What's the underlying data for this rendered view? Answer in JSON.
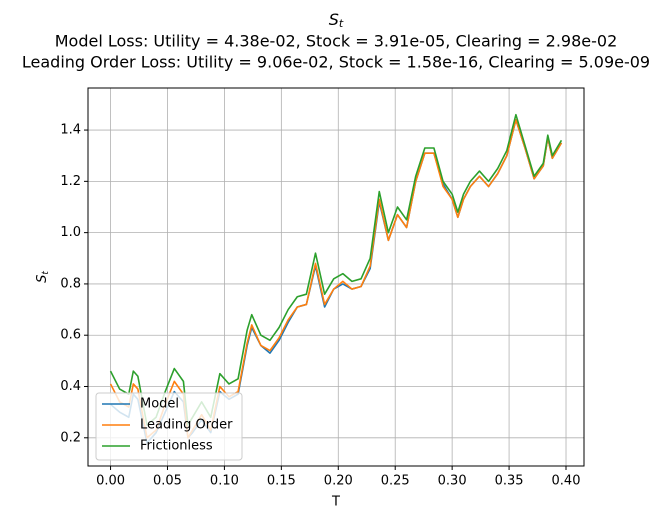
{
  "chart_data": {
    "type": "line",
    "title_symbol": "S",
    "title_subscript": "t",
    "subtitle": [
      "Model Loss: Utility = 4.38e-02, Stock = 3.91e-05, Clearing = 2.98e-02",
      "Leading Order Loss: Utility = 9.06e-02, Stock = 1.58e-16, Clearing = 5.09e-09"
    ],
    "xlabel": "T",
    "ylabel_symbol": "S",
    "ylabel_subscript": "t",
    "x": [
      0,
      0.008,
      0.016,
      0.02,
      0.024,
      0.032,
      0.04,
      0.048,
      0.056,
      0.064,
      0.068,
      0.072,
      0.08,
      0.088,
      0.096,
      0.104,
      0.112,
      0.12,
      0.124,
      0.132,
      0.14,
      0.148,
      0.156,
      0.164,
      0.172,
      0.18,
      0.188,
      0.196,
      0.204,
      0.212,
      0.22,
      0.228,
      0.236,
      0.244,
      0.252,
      0.26,
      0.268,
      0.276,
      0.284,
      0.292,
      0.3,
      0.305,
      0.31,
      0.316,
      0.324,
      0.332,
      0.34,
      0.348,
      0.356,
      0.364,
      0.372,
      0.38,
      0.384,
      0.388,
      0.396
    ],
    "series": [
      {
        "name": "Model",
        "color": "#1f77b4",
        "values": [
          0.33,
          0.3,
          0.28,
          0.37,
          0.35,
          0.18,
          0.22,
          0.3,
          0.38,
          0.34,
          0.2,
          0.22,
          0.27,
          0.22,
          0.38,
          0.35,
          0.37,
          0.56,
          0.63,
          0.56,
          0.53,
          0.58,
          0.65,
          0.71,
          0.72,
          0.87,
          0.71,
          0.78,
          0.8,
          0.78,
          0.79,
          0.86,
          1.12,
          0.97,
          1.07,
          1.02,
          1.2,
          1.31,
          1.31,
          1.19,
          1.13,
          1.06,
          1.13,
          1.18,
          1.22,
          1.18,
          1.23,
          1.3,
          1.44,
          1.33,
          1.21,
          1.26,
          1.37,
          1.29,
          1.35
        ]
      },
      {
        "name": "Leading Order",
        "color": "#ff7f0e",
        "values": [
          0.41,
          0.34,
          0.32,
          0.41,
          0.39,
          0.2,
          0.23,
          0.33,
          0.42,
          0.37,
          0.2,
          0.23,
          0.29,
          0.23,
          0.4,
          0.36,
          0.38,
          0.57,
          0.64,
          0.56,
          0.54,
          0.59,
          0.66,
          0.71,
          0.72,
          0.88,
          0.72,
          0.78,
          0.81,
          0.78,
          0.79,
          0.87,
          1.13,
          0.97,
          1.07,
          1.02,
          1.2,
          1.31,
          1.31,
          1.18,
          1.13,
          1.06,
          1.13,
          1.18,
          1.22,
          1.18,
          1.23,
          1.3,
          1.44,
          1.33,
          1.21,
          1.26,
          1.37,
          1.29,
          1.35
        ]
      },
      {
        "name": "Frictionless",
        "color": "#2ca02c",
        "values": [
          0.46,
          0.39,
          0.37,
          0.46,
          0.44,
          0.25,
          0.28,
          0.38,
          0.47,
          0.42,
          0.25,
          0.28,
          0.34,
          0.28,
          0.45,
          0.41,
          0.43,
          0.62,
          0.68,
          0.6,
          0.58,
          0.63,
          0.7,
          0.75,
          0.76,
          0.92,
          0.76,
          0.82,
          0.84,
          0.81,
          0.82,
          0.9,
          1.16,
          1.0,
          1.1,
          1.05,
          1.22,
          1.33,
          1.33,
          1.2,
          1.15,
          1.08,
          1.15,
          1.2,
          1.24,
          1.2,
          1.25,
          1.32,
          1.46,
          1.34,
          1.22,
          1.27,
          1.38,
          1.3,
          1.36
        ]
      }
    ],
    "xlim": [
      -0.0198,
      0.4158
    ],
    "ylim": [
      0.09,
      1.564
    ],
    "xticks": [
      {
        "value": 0,
        "label": "0.00"
      },
      {
        "value": 0.05,
        "label": "0.05"
      },
      {
        "value": 0.1,
        "label": "0.10"
      },
      {
        "value": 0.15,
        "label": "0.15"
      },
      {
        "value": 0.2,
        "label": "0.20"
      },
      {
        "value": 0.25,
        "label": "0.25"
      },
      {
        "value": 0.3,
        "label": "0.30"
      },
      {
        "value": 0.35,
        "label": "0.35"
      },
      {
        "value": 0.4,
        "label": "0.40"
      }
    ],
    "yticks": [
      0.2,
      0.4,
      0.6,
      0.8,
      {
        "value": 1,
        "label": "1.0"
      },
      1.2,
      1.4
    ],
    "grid": true,
    "legend": "lower left"
  }
}
